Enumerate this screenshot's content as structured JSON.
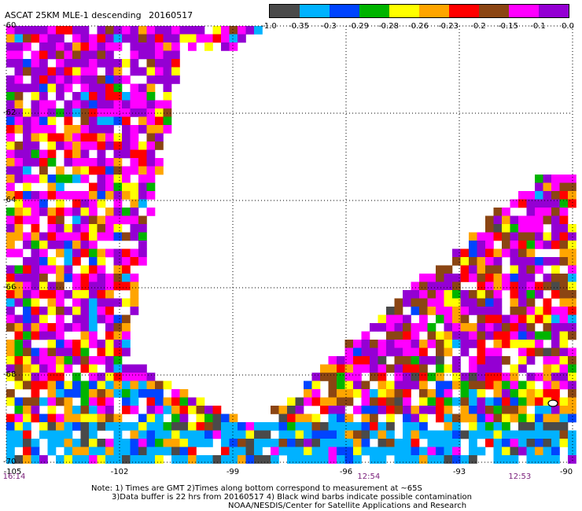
{
  "header": {
    "title": "ASCAT 25KM MLE-1 descending",
    "date": "20160517"
  },
  "colorbar": {
    "labels": [
      "-1.0",
      "-0.35",
      "-0.3",
      "-0.29",
      "-0.28",
      "-0.26",
      "-0.23",
      "-0.2",
      "-0.15",
      "-0.1",
      "0.0"
    ],
    "colors": [
      "#4a4a4a",
      "#00b2ff",
      "#0044ff",
      "#00b400",
      "#ffff00",
      "#ffa500",
      "#ff0000",
      "#8b4513",
      "#ff00ff",
      "#9400d3"
    ]
  },
  "map": {
    "lat_labels": [
      "-60",
      "-62",
      "-64",
      "-66",
      "-68",
      "-70"
    ],
    "lon_labels": [
      "-105",
      "-102",
      "-99",
      "-96",
      "-93",
      "-90"
    ],
    "time_labels": [
      {
        "text": "16:14",
        "lon": -105
      },
      {
        "text": "12:54",
        "lon": -95.4
      },
      {
        "text": "12:53",
        "lon": -91.4
      }
    ],
    "lat_range": [
      -70,
      -60
    ],
    "lon_range": [
      -105,
      -90
    ],
    "grid": "dotted"
  },
  "notes": {
    "line1": "Note: 1) Times are GMT 2)Times along bottom correspond to measurement at ~65S",
    "line2": "3)Data buffer is 22 hrs from 20160517 4) Black wind barbs indicate possible contamination",
    "line3": "NOAA/NESDIS/Center for Satellite Applications and Research"
  }
}
